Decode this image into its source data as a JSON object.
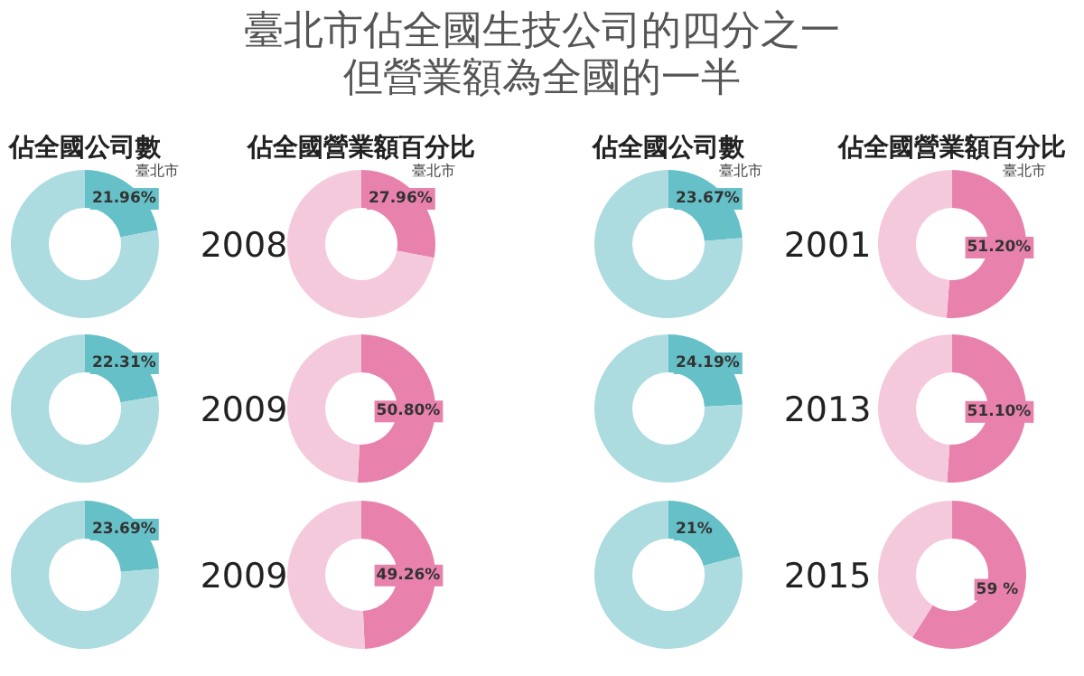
{
  "chart_data": [
    {
      "type": "other",
      "title": "臺北市佔全國生技公司的四分之一",
      "subtitle": "但營業額為全國的一半"
    },
    {
      "type": "donut",
      "title": "佔全國公司數",
      "categories": [
        "臺北市",
        null
      ],
      "values": [
        21.96,
        78.04
      ],
      "value_labels": [
        "21.96%",
        null
      ],
      "colors": [
        "#66c0c8",
        "#acdbe0"
      ],
      "annotations": [
        "2008"
      ]
    },
    {
      "type": "donut",
      "title": "佔全國營業額百分比",
      "categories": [
        "臺北市",
        null
      ],
      "values": [
        27.96,
        72.04
      ],
      "value_labels": [
        "27.96%",
        null
      ],
      "colors": [
        "#e882ad",
        "#f5c9dc"
      ]
    },
    {
      "type": "donut",
      "title": "佔全國公司數",
      "categories": [
        "臺北市",
        null
      ],
      "values": [
        23.67,
        76.33
      ],
      "value_labels": [
        "23.67%",
        null
      ],
      "colors": [
        "#66c0c8",
        "#acdbe0"
      ],
      "annotations": [
        "2001"
      ]
    },
    {
      "type": "donut",
      "title": "佔全國營業額百分比",
      "categories": [
        "臺北市",
        null
      ],
      "values": [
        51.2,
        48.8
      ],
      "value_labels": [
        "51.20%",
        null
      ],
      "colors": [
        "#e882ad",
        "#f5c9dc"
      ]
    },
    {
      "type": "donut",
      "categories": [
        null,
        null
      ],
      "values": [
        22.31,
        77.69
      ],
      "value_labels": [
        "22.31%",
        null
      ],
      "colors": [
        "#66c0c8",
        "#acdbe0"
      ],
      "annotations": [
        "2009"
      ]
    },
    {
      "type": "donut",
      "categories": [
        null,
        null
      ],
      "values": [
        50.8,
        49.2
      ],
      "value_labels": [
        "50.80%",
        null
      ],
      "colors": [
        "#e882ad",
        "#f5c9dc"
      ]
    },
    {
      "type": "donut",
      "categories": [
        null,
        null
      ],
      "values": [
        24.19,
        75.81
      ],
      "value_labels": [
        "24.19%",
        null
      ],
      "colors": [
        "#66c0c8",
        "#acdbe0"
      ],
      "annotations": [
        "2013"
      ]
    },
    {
      "type": "donut",
      "categories": [
        null,
        null
      ],
      "values": [
        51.1,
        48.9
      ],
      "value_labels": [
        "51.10%",
        null
      ],
      "colors": [
        "#e882ad",
        "#f5c9dc"
      ]
    },
    {
      "type": "donut",
      "categories": [
        null,
        null
      ],
      "values": [
        23.69,
        76.31
      ],
      "value_labels": [
        "23.69%",
        null
      ],
      "colors": [
        "#66c0c8",
        "#acdbe0"
      ],
      "annotations": [
        "2009"
      ]
    },
    {
      "type": "donut",
      "categories": [
        null,
        null
      ],
      "values": [
        49.26,
        50.74
      ],
      "value_labels": [
        "49.26%",
        null
      ],
      "colors": [
        "#e882ad",
        "#f5c9dc"
      ]
    },
    {
      "type": "donut",
      "categories": [
        null,
        null
      ],
      "values": [
        21,
        79
      ],
      "value_labels": [
        "21%",
        null
      ],
      "colors": [
        "#66c0c8",
        "#acdbe0"
      ],
      "annotations": [
        "2015"
      ]
    },
    {
      "type": "donut",
      "categories": [
        null,
        null
      ],
      "values": [
        59,
        41
      ],
      "value_labels": [
        "59 %",
        null
      ],
      "colors": [
        "#e882ad",
        "#f5c9dc"
      ]
    }
  ]
}
